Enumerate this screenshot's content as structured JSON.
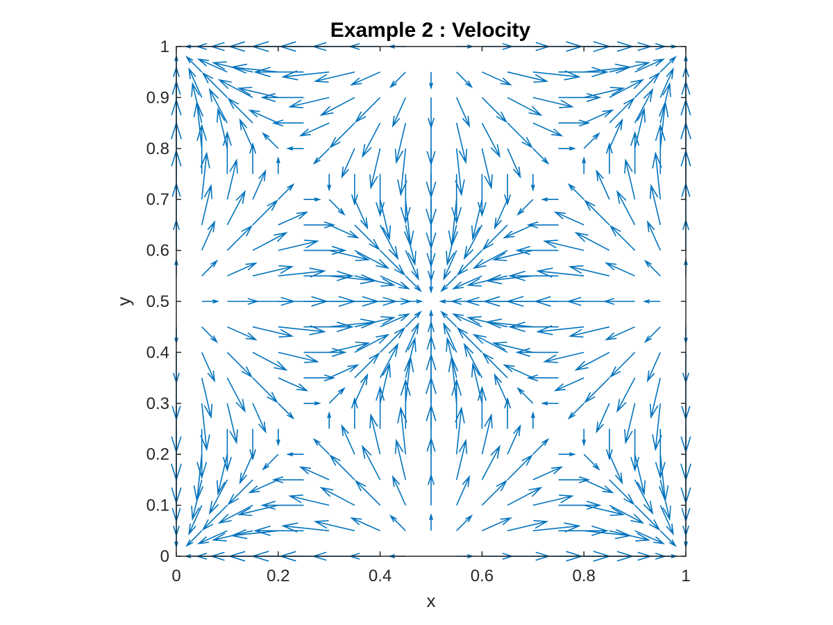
{
  "chart_data": {
    "type": "quiver",
    "title": "Example 2 : Velocity",
    "xlabel": "x",
    "ylabel": "y",
    "xlim": [
      0,
      1
    ],
    "ylim": [
      0,
      1
    ],
    "x_ticks": [
      "0",
      "0.2",
      "0.4",
      "0.6",
      "0.8",
      "1"
    ],
    "y_ticks": [
      "0",
      "0.1",
      "0.2",
      "0.3",
      "0.4",
      "0.5",
      "0.6",
      "0.7",
      "0.8",
      "0.9",
      "1"
    ],
    "grid": false,
    "box": true,
    "arrow_color": "#0072BD",
    "axis_color": "#262626",
    "field": {
      "u": "-sin(2*pi*x)*cos(2*pi*y)",
      "v": "-cos(2*pi*x)*sin(2*pi*y)"
    },
    "grid_points": {
      "x_start": 0,
      "x_end": 1,
      "x_step": 0.05,
      "y_start": 0,
      "y_end": 1,
      "y_step": 0.05
    },
    "x_values": [
      0,
      0.05,
      0.1,
      0.15,
      0.2,
      0.25,
      0.3,
      0.35,
      0.4,
      0.45,
      0.5,
      0.55,
      0.6,
      0.65,
      0.7,
      0.75,
      0.8,
      0.85,
      0.9,
      0.95,
      1
    ],
    "y_values": [
      0,
      0.05,
      0.1,
      0.15,
      0.2,
      0.25,
      0.3,
      0.35,
      0.4,
      0.45,
      0.5,
      0.55,
      0.6,
      0.65,
      0.7,
      0.75,
      0.8,
      0.85,
      0.9,
      0.95,
      1
    ],
    "stagnation_points": [
      {
        "x": 0.25,
        "y": 0.75
      },
      {
        "x": 0.75,
        "y": 0.25
      },
      {
        "x": 0.25,
        "y": 0.25
      },
      {
        "x": 0.75,
        "y": 0.75
      }
    ]
  }
}
